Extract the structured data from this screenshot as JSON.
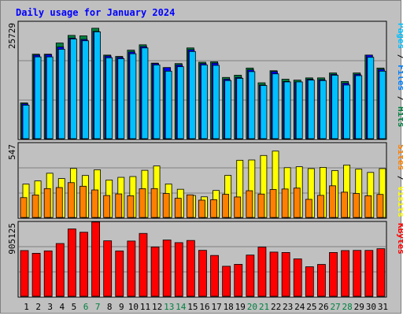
{
  "chart_data": {
    "type": "bar",
    "title": "Daily usage for January 2024",
    "categories": [
      "1",
      "2",
      "3",
      "4",
      "5",
      "6",
      "7",
      "8",
      "9",
      "10",
      "11",
      "12",
      "13",
      "14",
      "15",
      "16",
      "17",
      "18",
      "19",
      "20",
      "21",
      "22",
      "23",
      "24",
      "25",
      "26",
      "27",
      "28",
      "29",
      "30",
      "31"
    ],
    "weekend_days": [
      "6",
      "7",
      "13",
      "14",
      "20",
      "21",
      "27",
      "28"
    ],
    "colors": {
      "hits": "#008040",
      "files": "#0080ff",
      "pages": "#00c0ff",
      "visits": "#ffff00",
      "sites": "#ff8000",
      "kbytes": "#ff0000",
      "title": "#0000ff",
      "weekend_label": "#008040",
      "background": "#c0c0c0"
    },
    "panels": [
      {
        "axis_max_label": "25729",
        "ymax": 25729,
        "side_labels": [
          {
            "text": "Pages",
            "color": "#00c0ff"
          },
          {
            "text": " / ",
            "color": "#000000"
          },
          {
            "text": "Files",
            "color": "#0080ff"
          },
          {
            "text": " / ",
            "color": "#000000"
          },
          {
            "text": "Hits",
            "color": "#008040"
          }
        ],
        "series": [
          {
            "name": "Hits",
            "color": "#008040",
            "values": [
              8000,
              18900,
              18900,
              21400,
              23100,
              23000,
              24700,
              18700,
              18400,
              19800,
              21000,
              16900,
              15900,
              16800,
              20300,
              17100,
              17200,
              13700,
              14200,
              15800,
              12500,
              15200,
              13300,
              13100,
              13600,
              13600,
              14700,
              12800,
              14700,
              18700,
              15800
            ]
          },
          {
            "name": "Files",
            "color": "#0000ff",
            "values": [
              7800,
              18700,
              18800,
              20500,
              22500,
              22200,
              24000,
              18500,
              18200,
              19400,
              20600,
              16800,
              15900,
              16500,
              19900,
              16800,
              16900,
              13300,
              13700,
              15400,
              12000,
              15000,
              12800,
              12700,
              13300,
              13200,
              14400,
              12400,
              14400,
              18700,
              15500
            ]
          },
          {
            "name": "Pages",
            "color": "#00c0ff",
            "values": [
              7500,
              18300,
              18300,
              20000,
              22300,
              21900,
              23900,
              18100,
              17900,
              19000,
              20300,
              16500,
              15100,
              16100,
              19500,
              16500,
              16400,
              13000,
              13500,
              15000,
              11900,
              14500,
              12700,
              12700,
              13100,
              13000,
              14200,
              12000,
              14100,
              18200,
              15100
            ]
          }
        ]
      },
      {
        "axis_max_label": "547",
        "ymax": 547,
        "side_labels": [
          {
            "text": "Sites",
            "color": "#ff8000"
          },
          {
            "text": " / ",
            "color": "#000000"
          },
          {
            "text": "Visits",
            "color": "#ffff00"
          }
        ],
        "series": [
          {
            "name": "Visits",
            "color": "#ffff00",
            "values": [
              252,
              276,
              334,
              294,
              370,
              317,
              360,
              283,
              303,
              309,
              356,
              389,
              253,
              213,
              166,
              156,
              204,
              318,
              432,
              434,
              468,
              501,
              376,
              383,
              369,
              378,
              354,
              396,
              365,
              340,
              369
            ]
          },
          {
            "name": "Sites",
            "color": "#ff8000",
            "values": [
              150,
              170,
              218,
              226,
              263,
              236,
              208,
              166,
              178,
              164,
              217,
              218,
              181,
              145,
              171,
              131,
              134,
              175,
              155,
              202,
              177,
              211,
              215,
              222,
              137,
              167,
              239,
              191,
              181,
              164,
              174
            ]
          }
        ]
      },
      {
        "axis_max_label": "905125",
        "ymax": 905125,
        "side_labels": [
          {
            "text": "KBytes",
            "color": "#ff0000"
          }
        ],
        "series": [
          {
            "name": "KBytes",
            "color": "#ff0000",
            "values": [
              571000,
              537000,
              567000,
              659000,
              841000,
              800000,
              927000,
              693000,
              566000,
              690000,
              785000,
              616000,
              703000,
              670000,
              697000,
              574000,
              510000,
              375000,
              399000,
              515000,
              614000,
              552000,
              547000,
              467000,
              369000,
              398000,
              547000,
              571000,
              573000,
              573000,
              594000
            ]
          }
        ]
      }
    ]
  }
}
